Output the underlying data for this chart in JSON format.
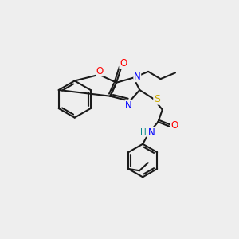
{
  "bg_color": "#eeeeee",
  "bond_color": "#1a1a1a",
  "atom_colors": {
    "O": "#ff0000",
    "N": "#0000ff",
    "S": "#ccaa00",
    "H": "#008888",
    "C": "#1a1a1a"
  },
  "figsize": [
    3.0,
    3.0
  ],
  "dpi": 100
}
